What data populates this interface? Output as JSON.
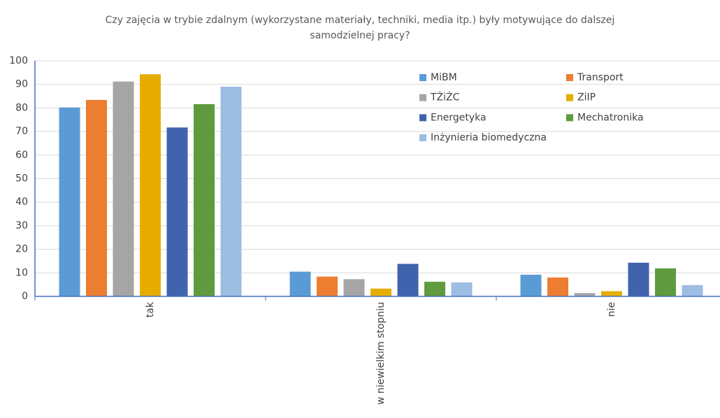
{
  "chart_data": {
    "type": "bar",
    "title": "Czy zajęcia w trybie zdalnym (wykorzystane materiały, techniki, media itp.) były motywujące do dalszej samodzielnej pracy?",
    "categories": [
      "tak",
      "w niewielkim stopniu",
      "nie"
    ],
    "series": [
      {
        "name": "MiBM",
        "color": "#5b9bd5",
        "values": [
          80.2,
          10.5,
          9.2
        ]
      },
      {
        "name": "Transport",
        "color": "#ed7d31",
        "values": [
          83.4,
          8.4,
          8.0
        ]
      },
      {
        "name": "TŻiŻC",
        "color": "#a5a5a5",
        "values": [
          91.2,
          7.3,
          1.4
        ]
      },
      {
        "name": "ZiIP",
        "color": "#e6ad00",
        "values": [
          94.3,
          3.3,
          2.2
        ]
      },
      {
        "name": "Energetyka",
        "color": "#4163ae",
        "values": [
          71.7,
          13.8,
          14.3
        ]
      },
      {
        "name": "Mechatronika",
        "color": "#5f9a3f",
        "values": [
          81.6,
          6.2,
          11.9
        ]
      },
      {
        "name": "Inżynieria biomedyczna",
        "color": "#9dbde3",
        "values": [
          89.0,
          5.9,
          4.8
        ]
      }
    ],
    "ylim": [
      0,
      100
    ],
    "yticks": [
      0,
      10,
      20,
      30,
      40,
      50,
      60,
      70,
      80,
      90,
      100
    ],
    "grid": true
  }
}
